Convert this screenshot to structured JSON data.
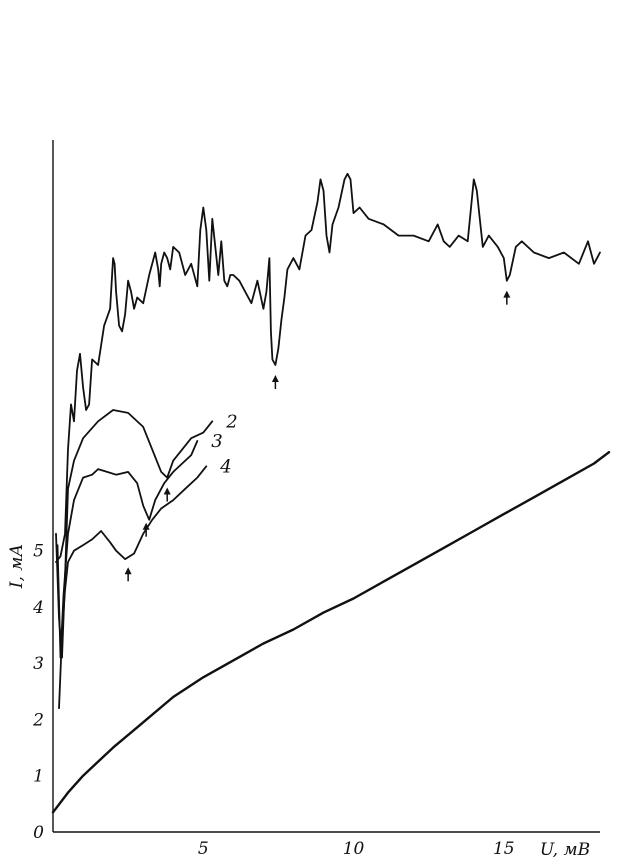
{
  "chart_data": {
    "type": "line",
    "xlabel": "U, мВ",
    "ylabel": "I, мА",
    "xlim": [
      0,
      18.5
    ],
    "ylim": [
      0,
      12.3
    ],
    "x_ticks": [
      {
        "value": 5,
        "label": "5"
      },
      {
        "value": 10,
        "label": "10"
      },
      {
        "value": 15,
        "label": "15"
      }
    ],
    "y_ticks": [
      {
        "value": 0,
        "label": "0"
      },
      {
        "value": 1,
        "label": "1"
      },
      {
        "value": 2,
        "label": "2"
      },
      {
        "value": 3,
        "label": "3"
      },
      {
        "value": 4,
        "label": "4"
      },
      {
        "value": 5,
        "label": "5"
      }
    ],
    "grid": false,
    "colors": {
      "ink": "#111111",
      "background": "#ffffff"
    },
    "series": [
      {
        "id": "curve-1",
        "label": "",
        "x": [
          0.1,
          0.25,
          0.4,
          0.5,
          0.6,
          0.7,
          0.8,
          0.9,
          1.0,
          1.1,
          1.2,
          1.3,
          1.5,
          1.7,
          1.9,
          2.0,
          2.05,
          2.1,
          2.2,
          2.3,
          2.4,
          2.5,
          2.6,
          2.7,
          2.8,
          3.0,
          3.2,
          3.4,
          3.5,
          3.55,
          3.6,
          3.7,
          3.8,
          3.9,
          4.0,
          4.2,
          4.4,
          4.6,
          4.8,
          4.9,
          5.0,
          5.1,
          5.2,
          5.3,
          5.4,
          5.5,
          5.6,
          5.7,
          5.8,
          5.9,
          6.0,
          6.2,
          6.4,
          6.6,
          6.8,
          7.0,
          7.1,
          7.2,
          7.25,
          7.3,
          7.4,
          7.5,
          7.6,
          7.7,
          7.8,
          8.0,
          8.2,
          8.4,
          8.6,
          8.8,
          8.9,
          9.0,
          9.1,
          9.2,
          9.3,
          9.5,
          9.7,
          9.8,
          9.9,
          10.0,
          10.2,
          10.5,
          11.0,
          11.5,
          12.0,
          12.5,
          12.8,
          13.0,
          13.2,
          13.5,
          13.8,
          14.0,
          14.1,
          14.2,
          14.3,
          14.5,
          14.8,
          15.0,
          15.1,
          15.2,
          15.4,
          15.6,
          16.0,
          16.5,
          17.0,
          17.5,
          17.8,
          18.0,
          18.2
        ],
        "y": [
          4.8,
          4.9,
          5.3,
          6.8,
          7.6,
          7.3,
          8.2,
          8.5,
          7.9,
          7.5,
          7.6,
          8.4,
          8.3,
          9.0,
          9.3,
          10.2,
          10.1,
          9.6,
          9.0,
          8.9,
          9.2,
          9.8,
          9.6,
          9.3,
          9.5,
          9.4,
          9.9,
          10.3,
          10.0,
          9.7,
          10.1,
          10.3,
          10.2,
          10.0,
          10.4,
          10.3,
          9.9,
          10.1,
          9.7,
          10.7,
          11.1,
          10.7,
          9.8,
          10.9,
          10.4,
          9.9,
          10.5,
          9.8,
          9.7,
          9.9,
          9.9,
          9.8,
          9.6,
          9.4,
          9.8,
          9.3,
          9.6,
          10.2,
          8.9,
          8.4,
          8.3,
          8.6,
          9.1,
          9.5,
          10.0,
          10.2,
          10.0,
          10.6,
          10.7,
          11.2,
          11.6,
          11.4,
          10.6,
          10.3,
          10.8,
          11.1,
          11.6,
          11.7,
          11.6,
          11.0,
          11.1,
          10.9,
          10.8,
          10.6,
          10.6,
          10.5,
          10.8,
          10.5,
          10.4,
          10.6,
          10.5,
          11.6,
          11.4,
          10.9,
          10.4,
          10.6,
          10.4,
          10.2,
          9.8,
          9.9,
          10.4,
          10.5,
          10.3,
          10.2,
          10.3,
          10.1,
          10.5,
          10.1,
          10.3
        ],
        "marker_x": [
          7.4,
          15.1
        ]
      },
      {
        "id": "curve-2",
        "label": "2",
        "x": [
          0.1,
          0.2,
          0.3,
          0.4,
          0.5,
          0.7,
          1.0,
          1.5,
          2.0,
          2.5,
          3.0,
          3.3,
          3.6,
          3.8,
          4.0,
          4.3,
          4.6,
          5.0,
          5.3
        ],
        "y": [
          5.3,
          3.8,
          3.1,
          4.5,
          6.1,
          6.6,
          7.0,
          7.3,
          7.5,
          7.45,
          7.2,
          6.8,
          6.4,
          6.3,
          6.6,
          6.8,
          7.0,
          7.1,
          7.3
        ],
        "marker_x": [
          3.8
        ]
      },
      {
        "id": "curve-3",
        "label": "3",
        "x": [
          0.15,
          0.25,
          0.35,
          0.5,
          0.7,
          1.0,
          1.3,
          1.5,
          1.8,
          2.1,
          2.5,
          2.8,
          3.0,
          3.2,
          3.4,
          3.7,
          4.0,
          4.3,
          4.6,
          4.8
        ],
        "y": [
          5.1,
          3.1,
          4.2,
          5.3,
          5.9,
          6.3,
          6.35,
          6.45,
          6.4,
          6.35,
          6.4,
          6.2,
          5.8,
          5.55,
          5.9,
          6.2,
          6.4,
          6.55,
          6.7,
          6.95
        ],
        "marker_x": [
          3.1
        ]
      },
      {
        "id": "curve-4",
        "label": "4",
        "x": [
          0.2,
          0.3,
          0.4,
          0.5,
          0.7,
          1.0,
          1.3,
          1.6,
          1.9,
          2.1,
          2.4,
          2.7,
          3.0,
          3.3,
          3.6,
          4.0,
          4.4,
          4.8,
          5.1
        ],
        "y": [
          2.2,
          3.5,
          4.3,
          4.8,
          5.0,
          5.1,
          5.2,
          5.35,
          5.15,
          5.0,
          4.85,
          4.95,
          5.3,
          5.55,
          5.75,
          5.9,
          6.1,
          6.3,
          6.5
        ],
        "marker_x": [
          2.5
        ]
      },
      {
        "id": "curve-5",
        "label": "",
        "x": [
          0,
          0.5,
          1,
          2,
          3,
          4,
          5,
          6,
          7,
          8,
          9,
          10,
          11,
          12,
          13,
          14,
          15,
          16,
          17,
          18,
          18.5
        ],
        "y": [
          0.35,
          0.7,
          1.0,
          1.5,
          1.95,
          2.4,
          2.75,
          3.05,
          3.35,
          3.6,
          3.9,
          4.15,
          4.45,
          4.75,
          5.05,
          5.35,
          5.65,
          5.95,
          6.25,
          6.55,
          6.75
        ]
      }
    ]
  }
}
